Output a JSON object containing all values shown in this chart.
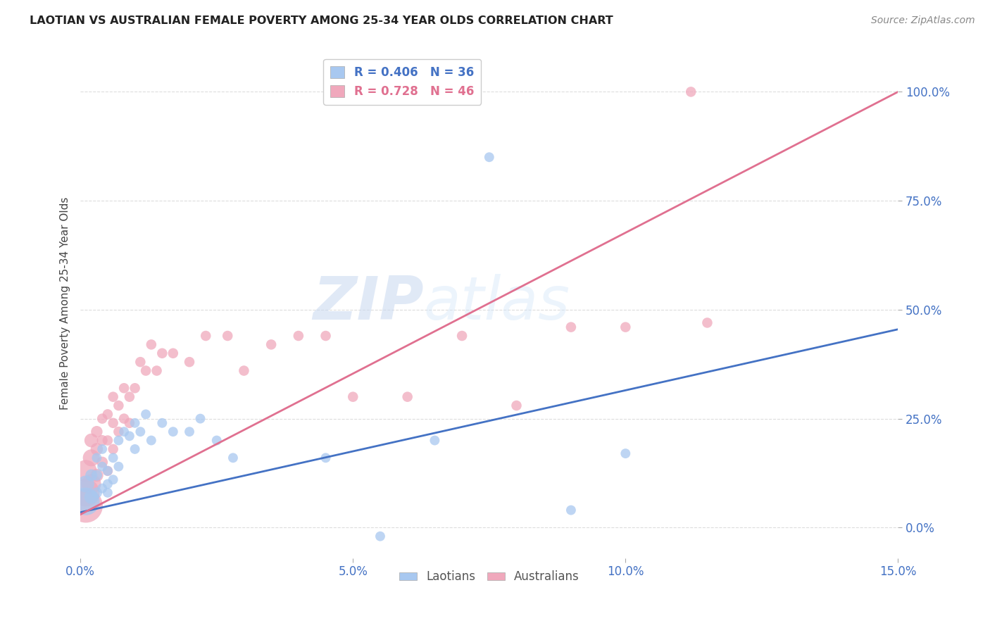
{
  "title": "LAOTIAN VS AUSTRALIAN FEMALE POVERTY AMONG 25-34 YEAR OLDS CORRELATION CHART",
  "source": "Source: ZipAtlas.com",
  "ylabel": "Female Poverty Among 25-34 Year Olds",
  "xlim": [
    0.0,
    0.15
  ],
  "ylim": [
    -0.07,
    1.1
  ],
  "yticks": [
    0.0,
    0.25,
    0.5,
    0.75,
    1.0
  ],
  "ytick_labels": [
    "0.0%",
    "25.0%",
    "50.0%",
    "75.0%",
    "100.0%"
  ],
  "xticks": [
    0.0,
    0.05,
    0.1,
    0.15
  ],
  "xtick_labels": [
    "0.0%",
    "5.0%",
    "10.0%",
    "15.0%"
  ],
  "background_color": "#ffffff",
  "grid_color": "#dddddd",
  "watermark_zip": "ZIP",
  "watermark_atlas": "atlas",
  "laotians_color": "#a8c8f0",
  "australians_color": "#f0a8bc",
  "laotians_R": 0.406,
  "laotians_N": 36,
  "australians_R": 0.728,
  "australians_N": 46,
  "laotians_line_color": "#4472c4",
  "australians_line_color": "#e07090",
  "axis_tick_color": "#4472c4",
  "legend_label_laotians": "Laotians",
  "legend_label_australians": "Australians",
  "lao_line_x0": 0.0,
  "lao_line_y0": 0.035,
  "lao_line_x1": 0.15,
  "lao_line_y1": 0.455,
  "aus_line_x0": 0.0,
  "aus_line_y0": 0.03,
  "aus_line_x1": 0.15,
  "aus_line_y1": 1.0,
  "laotians_x": [
    0.001,
    0.001,
    0.002,
    0.002,
    0.003,
    0.003,
    0.003,
    0.004,
    0.004,
    0.004,
    0.005,
    0.005,
    0.005,
    0.006,
    0.006,
    0.007,
    0.007,
    0.008,
    0.009,
    0.01,
    0.01,
    0.011,
    0.012,
    0.013,
    0.015,
    0.017,
    0.02,
    0.022,
    0.025,
    0.028,
    0.045,
    0.055,
    0.065,
    0.075,
    0.09,
    0.1
  ],
  "laotians_y": [
    0.06,
    0.1,
    0.07,
    0.12,
    0.08,
    0.12,
    0.16,
    0.09,
    0.14,
    0.18,
    0.08,
    0.13,
    0.1,
    0.11,
    0.16,
    0.14,
    0.2,
    0.22,
    0.21,
    0.24,
    0.18,
    0.22,
    0.26,
    0.2,
    0.24,
    0.22,
    0.22,
    0.25,
    0.2,
    0.16,
    0.16,
    -0.02,
    0.2,
    0.85,
    0.04,
    0.17
  ],
  "laotians_sizes": [
    800,
    300,
    200,
    150,
    120,
    120,
    100,
    100,
    100,
    100,
    100,
    100,
    100,
    100,
    100,
    100,
    100,
    100,
    100,
    100,
    100,
    100,
    100,
    100,
    100,
    100,
    100,
    100,
    100,
    100,
    100,
    100,
    100,
    100,
    100,
    100
  ],
  "australians_x": [
    0.001,
    0.001,
    0.001,
    0.002,
    0.002,
    0.002,
    0.003,
    0.003,
    0.003,
    0.004,
    0.004,
    0.004,
    0.005,
    0.005,
    0.005,
    0.006,
    0.006,
    0.006,
    0.007,
    0.007,
    0.008,
    0.008,
    0.009,
    0.009,
    0.01,
    0.011,
    0.012,
    0.013,
    0.014,
    0.015,
    0.017,
    0.02,
    0.023,
    0.027,
    0.03,
    0.035,
    0.04,
    0.045,
    0.05,
    0.06,
    0.07,
    0.08,
    0.09,
    0.1,
    0.112,
    0.115
  ],
  "australians_y": [
    0.05,
    0.08,
    0.13,
    0.1,
    0.16,
    0.2,
    0.12,
    0.18,
    0.22,
    0.15,
    0.2,
    0.25,
    0.13,
    0.2,
    0.26,
    0.18,
    0.24,
    0.3,
    0.22,
    0.28,
    0.25,
    0.32,
    0.24,
    0.3,
    0.32,
    0.38,
    0.36,
    0.42,
    0.36,
    0.4,
    0.4,
    0.38,
    0.44,
    0.44,
    0.36,
    0.42,
    0.44,
    0.44,
    0.3,
    0.3,
    0.44,
    0.28,
    0.46,
    0.46,
    1.0,
    0.47
  ],
  "australians_sizes": [
    1200,
    800,
    500,
    400,
    300,
    200,
    180,
    160,
    140,
    130,
    120,
    110,
    110,
    110,
    110,
    110,
    110,
    110,
    110,
    110,
    110,
    110,
    110,
    110,
    110,
    110,
    110,
    110,
    110,
    110,
    110,
    110,
    110,
    110,
    110,
    110,
    110,
    110,
    110,
    110,
    110,
    110,
    110,
    110,
    110,
    110
  ]
}
